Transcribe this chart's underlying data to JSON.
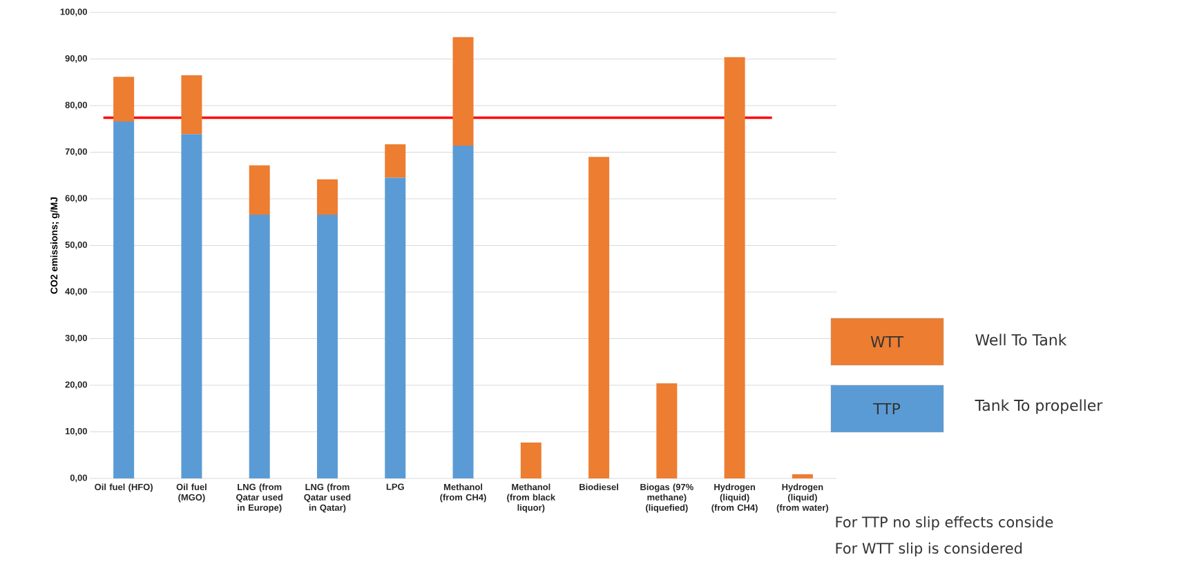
{
  "chart_data": {
    "type": "bar",
    "stacked": true,
    "ylabel": "CO2 emissions; g/MJ",
    "categories": [
      "Oil fuel (HFO)",
      "Oil fuel (MGO)",
      "LNG (from Qatar used in Europe)",
      "LNG (from Qatar used in Qatar)",
      "LPG",
      "Methanol (from CH4)",
      "Methanol (from black liquor)",
      "Biodiesel",
      "Biogas (97% methane) (liquefied)",
      "Hydrogen (liquid) (from CH4)",
      "Hydrogen (liquid) (from water)"
    ],
    "series": [
      {
        "name": "TTP",
        "color": "#5b9bd5",
        "values": [
          76.6,
          73.9,
          56.6,
          56.6,
          64.5,
          71.4,
          0,
          0,
          0,
          0,
          0
        ]
      },
      {
        "name": "WTT",
        "color": "#ed7d31",
        "values": [
          9.6,
          12.6,
          10.6,
          7.6,
          7.2,
          23.3,
          7.7,
          69.0,
          20.4,
          90.4,
          0.9
        ]
      }
    ],
    "ylim": [
      0,
      100
    ],
    "yticks": [
      {
        "value": 0,
        "label": "0,00"
      },
      {
        "value": 10,
        "label": "10,00"
      },
      {
        "value": 20,
        "label": "20,00"
      },
      {
        "value": 30,
        "label": "30,00"
      },
      {
        "value": 40,
        "label": "40,00"
      },
      {
        "value": 50,
        "label": "50,00"
      },
      {
        "value": 60,
        "label": "60,00"
      },
      {
        "value": 70,
        "label": "70,00"
      },
      {
        "value": 80,
        "label": "80,00"
      },
      {
        "value": 90,
        "label": "90,00"
      },
      {
        "value": 100,
        "label": "100,00"
      }
    ],
    "grid": "y",
    "legend": "right",
    "ref_lines": [
      {
        "axis": "y",
        "value": 77.4,
        "color": "#ff0000"
      }
    ],
    "annotations": [
      "Well To Tank",
      "Tank To propeller",
      "For TTP no slip effects conside",
      "For WTT slip is considered"
    ]
  }
}
